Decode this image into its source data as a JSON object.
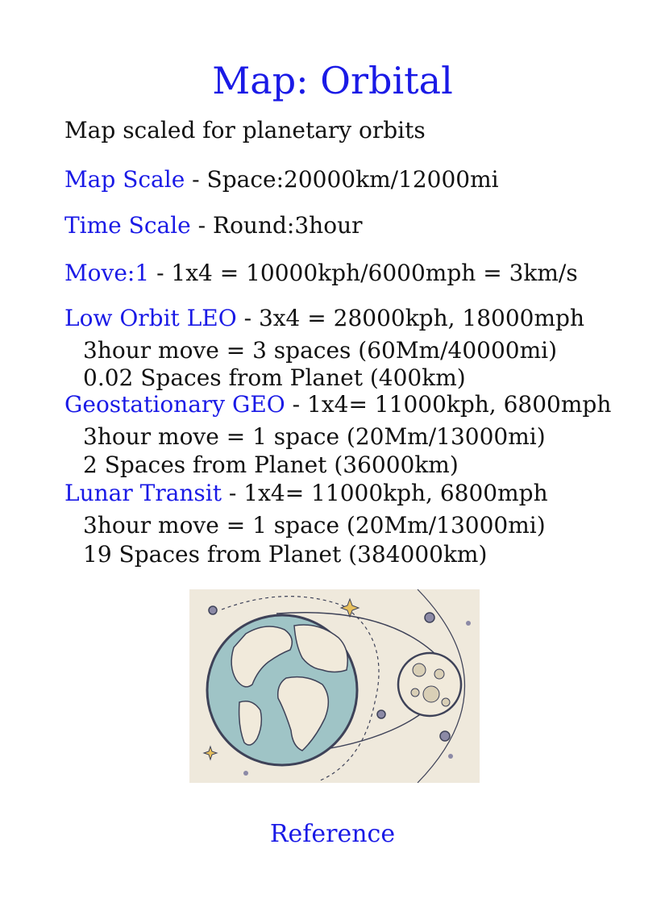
{
  "title": "Map: Orbital",
  "subtitle": "Map scaled for planetary orbits",
  "map_scale": {
    "label": "Map Scale",
    "text": " - Space:20000km/12000mi"
  },
  "time_scale": {
    "label": "Time Scale",
    "text": " - Round:3hour"
  },
  "move": {
    "label": "Move:1",
    "text": " - 1x4 = 10000kph/6000mph = 3km/s"
  },
  "leo": {
    "label": "Low Orbit LEO",
    "text": " - 3x4 = 28000kph, 18000mph",
    "details": [
      "3hour move = 3 spaces (60Mm/40000mi)",
      "0.02 Spaces from Planet (400km)"
    ]
  },
  "geo": {
    "label": "Geostationary GEO",
    "text": " - 1x4= 11000kph, 6800mph",
    "details": [
      "3hour move = 1 space (20Mm/13000mi)",
      "2 Spaces from Planet (36000km)"
    ]
  },
  "lunar": {
    "label": "Lunar Transit",
    "text": " - 1x4= 11000kph, 6800mph",
    "details": [
      "3hour move = 1 space (20Mm/13000mi)",
      "19 Spaces from Planet (384000km)"
    ]
  },
  "reference_link": "Reference",
  "colors": {
    "accent": "#1a1ae6",
    "earth_ocean": "#9fc4c6",
    "land": "#f1eadb",
    "illustration_bg": "#efe9dc",
    "outline": "#3e4258"
  }
}
